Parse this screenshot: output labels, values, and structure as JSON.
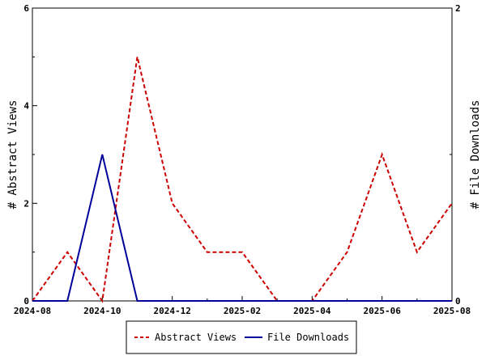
{
  "chart_data": {
    "type": "line",
    "x": [
      "2024-08",
      "2024-09",
      "2024-10",
      "2024-11",
      "2024-12",
      "2025-01",
      "2025-02",
      "2025-03",
      "2025-04",
      "2025-05",
      "2025-06",
      "2025-07",
      "2025-08"
    ],
    "x_tick_labels": [
      "2024-08",
      "2024-10",
      "2024-12",
      "2025-02",
      "2025-04",
      "2025-06",
      "2025-08"
    ],
    "series": [
      {
        "name": "Abstract Views",
        "axis": "left",
        "color": "#cc0000",
        "style": "dashed",
        "values": [
          0,
          1,
          0,
          5,
          2,
          1,
          1,
          0,
          0,
          1,
          3,
          1,
          2
        ]
      },
      {
        "name": "File Downloads",
        "axis": "right",
        "color": "#000099",
        "style": "solid",
        "values": [
          0,
          0,
          1,
          0,
          0,
          0,
          0,
          0,
          0,
          0,
          0,
          0,
          0
        ]
      }
    ],
    "ylabel_left": "# Abstract Views",
    "ylabel_right": "# File Downloads",
    "ylim_left": [
      0,
      6
    ],
    "ylim_right": [
      0,
      2
    ],
    "y_ticks_left": [
      "0",
      "2",
      "4",
      "6"
    ],
    "y_ticks_right": [
      "0",
      "2"
    ],
    "grid": false,
    "legend_position": "bottom-center"
  }
}
